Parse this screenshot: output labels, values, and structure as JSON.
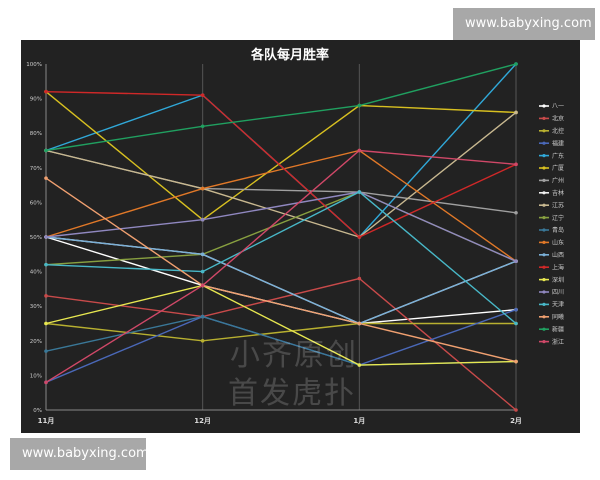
{
  "watermarks": {
    "top": "www.babyxing.com",
    "bottom": "www.babyxing.com",
    "center_line1": "小齐原创",
    "center_line2": "首发虎扑"
  },
  "chart_data": {
    "type": "line",
    "title": "各队每月胜率",
    "categories": [
      "11月",
      "12月",
      "1月",
      "2月"
    ],
    "ylim": [
      0,
      100
    ],
    "yticks": [
      "0%",
      "10%",
      "20%",
      "30%",
      "40%",
      "50%",
      "60%",
      "70%",
      "80%",
      "90%",
      "100%"
    ],
    "grid": "vertical",
    "legend_position": "right",
    "series": [
      {
        "name": "八一",
        "color": "#ffffff",
        "values": [
          50,
          36,
          25,
          29
        ]
      },
      {
        "name": "北京",
        "color": "#c84a4a",
        "values": [
          33,
          27,
          38,
          0
        ]
      },
      {
        "name": "北控",
        "color": "#b8b030",
        "values": [
          25,
          20,
          25,
          25
        ]
      },
      {
        "name": "福建",
        "color": "#4a68b8",
        "values": [
          8,
          27,
          13,
          29
        ]
      },
      {
        "name": "广东",
        "color": "#30a8d8",
        "values": [
          75,
          91,
          50,
          100
        ]
      },
      {
        "name": "广厦",
        "color": "#d8c020",
        "values": [
          92,
          55,
          88,
          86
        ]
      },
      {
        "name": "广州",
        "color": "#a0a0a0",
        "values": [
          75,
          64,
          63,
          57
        ]
      },
      {
        "name": "吉林",
        "color": "#f0f0f0",
        "values": [
          50,
          45,
          25,
          43
        ]
      },
      {
        "name": "江苏",
        "color": "#c8b890",
        "values": [
          75,
          64,
          50,
          86
        ]
      },
      {
        "name": "辽宁",
        "color": "#88a040",
        "values": [
          42,
          45,
          63,
          43
        ]
      },
      {
        "name": "青岛",
        "color": "#3a7898",
        "values": [
          17,
          27,
          13,
          14
        ]
      },
      {
        "name": "山东",
        "color": "#e07828",
        "values": [
          50,
          64,
          75,
          43
        ]
      },
      {
        "name": "山西",
        "color": "#7ab0d8",
        "values": [
          50,
          45,
          25,
          43
        ]
      },
      {
        "name": "上海",
        "color": "#d02828",
        "values": [
          92,
          91,
          50,
          71
        ]
      },
      {
        "name": "深圳",
        "color": "#e8e850",
        "values": [
          25,
          36,
          13,
          14
        ]
      },
      {
        "name": "四川",
        "color": "#9088c0",
        "values": [
          50,
          55,
          63,
          43
        ]
      },
      {
        "name": "天津",
        "color": "#48b8c8",
        "values": [
          42,
          40,
          63,
          25
        ]
      },
      {
        "name": "同曦",
        "color": "#f0a070",
        "values": [
          67,
          36,
          25,
          14
        ]
      },
      {
        "name": "新疆",
        "color": "#20a060",
        "values": [
          75,
          82,
          88,
          100
        ]
      },
      {
        "name": "浙江",
        "color": "#d04868",
        "values": [
          8,
          36,
          75,
          71
        ]
      }
    ]
  }
}
